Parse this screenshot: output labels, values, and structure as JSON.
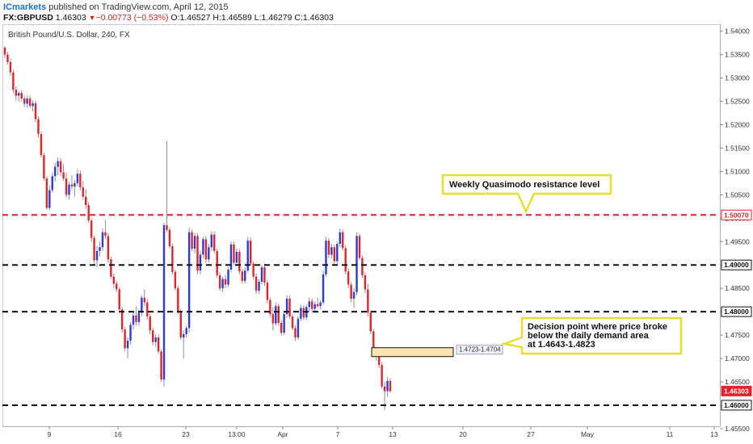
{
  "header": {
    "author": "ICmarkets",
    "published": "published on TradingView.com, April 12, 2015",
    "symbol": "FX:GBPUSD",
    "last": "1.46303",
    "change": "−0.00773 (−0.53%)",
    "open": "O:1.46527",
    "high": "H:1.46589",
    "low": "L:1.46279",
    "close": "C:1.46303"
  },
  "colors": {
    "up": "#2b3bd6",
    "down": "#e0242b",
    "level_black": "#111111",
    "level_red": "#d8252b",
    "callout_border": "#e3e033",
    "zone_fill": "#fbe3b0"
  },
  "chart_data": {
    "type": "candlestick",
    "title": "British Pound/U.S. Dollar, 240, FX",
    "ylim": [
      1.4555,
      1.5415
    ],
    "y_ticks": [
      "1.54000",
      "1.53500",
      "1.53000",
      "1.52500",
      "1.52000",
      "1.51500",
      "1.51000",
      "1.50500",
      "1.50000",
      "1.49500",
      "1.49000",
      "1.48500",
      "1.48000",
      "1.47500",
      "1.47000",
      "1.46500",
      "1.46000",
      "1.45500"
    ],
    "x_ticks": [
      "9",
      "16",
      "23",
      "13:00",
      "Apr",
      "7",
      "13",
      "20",
      "27",
      "May",
      "11",
      "13"
    ],
    "levels": [
      {
        "price": 1.5007,
        "label": "1.50070",
        "style": "red"
      },
      {
        "price": 1.49,
        "label": "1.49000",
        "style": "black"
      },
      {
        "price": 1.48,
        "label": "1.48000",
        "style": "black"
      },
      {
        "price": 1.46,
        "label": "1.46000",
        "style": "black"
      }
    ],
    "last_price": {
      "price": 1.46303,
      "label": "1.46303"
    },
    "zone": {
      "top": 1.4723,
      "bottom": 1.4704,
      "label": "1.4723-1.4704"
    },
    "callouts": [
      {
        "id": "weekly",
        "lines": [
          "Weekly Quasimodo resistance level"
        ]
      },
      {
        "id": "decision",
        "lines": [
          "Decision point where price broke",
          "below the daily demand area",
          "at 1.4643-1.4823"
        ]
      }
    ],
    "candles": [
      [
        1.5365,
        1.5368,
        1.5342,
        1.535
      ],
      [
        1.535,
        1.5356,
        1.5328,
        1.5334
      ],
      [
        1.5334,
        1.534,
        1.5305,
        1.5312
      ],
      [
        1.5312,
        1.5318,
        1.5268,
        1.5275
      ],
      [
        1.5275,
        1.5282,
        1.5252,
        1.5262
      ],
      [
        1.5262,
        1.5272,
        1.525,
        1.5268
      ],
      [
        1.5268,
        1.5274,
        1.525,
        1.5256
      ],
      [
        1.5256,
        1.5262,
        1.5238,
        1.5245
      ],
      [
        1.5245,
        1.5262,
        1.5236,
        1.5256
      ],
      [
        1.5256,
        1.5262,
        1.5236,
        1.524
      ],
      [
        1.524,
        1.5252,
        1.5228,
        1.5246
      ],
      [
        1.5246,
        1.5252,
        1.5206,
        1.5212
      ],
      [
        1.5212,
        1.5218,
        1.5172,
        1.518
      ],
      [
        1.518,
        1.5186,
        1.513,
        1.5135
      ],
      [
        1.5135,
        1.514,
        1.508,
        1.5085
      ],
      [
        1.5085,
        1.509,
        1.5018,
        1.5022
      ],
      [
        1.5022,
        1.507,
        1.5018,
        1.506
      ],
      [
        1.506,
        1.5098,
        1.5055,
        1.509
      ],
      [
        1.509,
        1.5118,
        1.5078,
        1.511
      ],
      [
        1.511,
        1.513,
        1.5092,
        1.5122
      ],
      [
        1.5122,
        1.5128,
        1.509,
        1.5098
      ],
      [
        1.5098,
        1.5116,
        1.508,
        1.5085
      ],
      [
        1.5085,
        1.5098,
        1.5044,
        1.505
      ],
      [
        1.505,
        1.5078,
        1.504,
        1.5072
      ],
      [
        1.5072,
        1.5092,
        1.506,
        1.5068
      ],
      [
        1.5068,
        1.5082,
        1.5046,
        1.5075
      ],
      [
        1.5075,
        1.5105,
        1.5068,
        1.5095
      ],
      [
        1.5095,
        1.5102,
        1.506,
        1.5066
      ],
      [
        1.5066,
        1.508,
        1.504,
        1.5046
      ],
      [
        1.5046,
        1.5062,
        1.502,
        1.5028
      ],
      [
        1.5028,
        1.5034,
        1.499,
        1.4995
      ],
      [
        1.4995,
        1.5,
        1.495,
        1.4958
      ],
      [
        1.4958,
        1.4963,
        1.4902,
        1.491
      ],
      [
        1.491,
        1.494,
        1.4895,
        1.493
      ],
      [
        1.493,
        1.495,
        1.4918,
        1.4938
      ],
      [
        1.4938,
        1.4978,
        1.493,
        1.497
      ],
      [
        1.497,
        1.4996,
        1.4955,
        1.4962
      ],
      [
        1.4962,
        1.4968,
        1.4905,
        1.4912
      ],
      [
        1.4912,
        1.4918,
        1.487,
        1.4875
      ],
      [
        1.4875,
        1.4882,
        1.485,
        1.486
      ],
      [
        1.486,
        1.4866,
        1.4842,
        1.4848
      ],
      [
        1.4848,
        1.4853,
        1.48,
        1.4805
      ],
      [
        1.4805,
        1.481,
        1.4755,
        1.4762
      ],
      [
        1.4762,
        1.4768,
        1.4715,
        1.4722
      ],
      [
        1.4722,
        1.4745,
        1.47,
        1.4738
      ],
      [
        1.4738,
        1.4778,
        1.473,
        1.4772
      ],
      [
        1.4772,
        1.48,
        1.4762,
        1.4792
      ],
      [
        1.4792,
        1.4812,
        1.477,
        1.4778
      ],
      [
        1.4778,
        1.4805,
        1.477,
        1.4798
      ],
      [
        1.4798,
        1.4835,
        1.479,
        1.483
      ],
      [
        1.483,
        1.4848,
        1.4812,
        1.482
      ],
      [
        1.482,
        1.4826,
        1.4782,
        1.479
      ],
      [
        1.479,
        1.4796,
        1.4752,
        1.476
      ],
      [
        1.476,
        1.4766,
        1.4728,
        1.4735
      ],
      [
        1.4735,
        1.4752,
        1.4725,
        1.4745
      ],
      [
        1.4745,
        1.4752,
        1.471,
        1.4715
      ],
      [
        1.4715,
        1.472,
        1.465,
        1.4655
      ],
      [
        1.4655,
        1.499,
        1.464,
        1.4985
      ],
      [
        1.4985,
        1.5165,
        1.497,
        1.4975
      ],
      [
        1.4975,
        1.4981,
        1.4935,
        1.494
      ],
      [
        1.494,
        1.4946,
        1.488,
        1.4885
      ],
      [
        1.4885,
        1.489,
        1.4845,
        1.485
      ],
      [
        1.485,
        1.4856,
        1.4795,
        1.48
      ],
      [
        1.48,
        1.4806,
        1.474,
        1.4745
      ],
      [
        1.4745,
        1.476,
        1.47,
        1.4752
      ],
      [
        1.4752,
        1.477,
        1.4745,
        1.4765
      ],
      [
        1.4765,
        1.498,
        1.4755,
        1.497
      ],
      [
        1.497,
        1.4976,
        1.493,
        1.4935
      ],
      [
        1.4935,
        1.4968,
        1.4925,
        1.4962
      ],
      [
        1.4962,
        1.4968,
        1.488,
        1.4888
      ],
      [
        1.4888,
        1.493,
        1.488,
        1.4922
      ],
      [
        1.4922,
        1.496,
        1.4915,
        1.4955
      ],
      [
        1.4955,
        1.4962,
        1.4905,
        1.4912
      ],
      [
        1.4912,
        1.4945,
        1.4905,
        1.4938
      ],
      [
        1.4938,
        1.4972,
        1.493,
        1.4965
      ],
      [
        1.4965,
        1.4972,
        1.4925,
        1.493
      ],
      [
        1.493,
        1.4935,
        1.4872,
        1.4878
      ],
      [
        1.4878,
        1.4884,
        1.4845,
        1.485
      ],
      [
        1.485,
        1.4875,
        1.4842,
        1.487
      ],
      [
        1.487,
        1.4878,
        1.485,
        1.4858
      ],
      [
        1.4858,
        1.4895,
        1.4852,
        1.489
      ],
      [
        1.489,
        1.495,
        1.4884,
        1.4944
      ],
      [
        1.4944,
        1.495,
        1.49,
        1.4905
      ],
      [
        1.4905,
        1.4935,
        1.4898,
        1.4928
      ],
      [
        1.4928,
        1.4934,
        1.488,
        1.4886
      ],
      [
        1.4886,
        1.4892,
        1.486,
        1.4866
      ],
      [
        1.4866,
        1.4895,
        1.486,
        1.4888
      ],
      [
        1.4888,
        1.496,
        1.4884,
        1.4952
      ],
      [
        1.4952,
        1.4958,
        1.4898,
        1.4903
      ],
      [
        1.4903,
        1.4908,
        1.487,
        1.4875
      ],
      [
        1.4875,
        1.4882,
        1.4838,
        1.4845
      ],
      [
        1.4845,
        1.487,
        1.4838,
        1.4864
      ],
      [
        1.4864,
        1.49,
        1.4858,
        1.4895
      ],
      [
        1.4895,
        1.4902,
        1.4855,
        1.4862
      ],
      [
        1.4862,
        1.4868,
        1.4818,
        1.4825
      ],
      [
        1.4825,
        1.483,
        1.4788,
        1.4795
      ],
      [
        1.4795,
        1.481,
        1.476,
        1.4775
      ],
      [
        1.4775,
        1.482,
        1.477,
        1.4812
      ],
      [
        1.4812,
        1.4818,
        1.477,
        1.4776
      ],
      [
        1.4776,
        1.4782,
        1.4748,
        1.4755
      ],
      [
        1.4755,
        1.48,
        1.475,
        1.4795
      ],
      [
        1.4795,
        1.4835,
        1.4788,
        1.4828
      ],
      [
        1.4828,
        1.4834,
        1.4785,
        1.479
      ],
      [
        1.479,
        1.4795,
        1.476,
        1.4765
      ],
      [
        1.4765,
        1.4771,
        1.4738,
        1.4745
      ],
      [
        1.4745,
        1.479,
        1.474,
        1.4785
      ],
      [
        1.4785,
        1.4815,
        1.478,
        1.4808
      ],
      [
        1.4808,
        1.4814,
        1.4782,
        1.4788
      ],
      [
        1.4788,
        1.4815,
        1.4782,
        1.481
      ],
      [
        1.481,
        1.483,
        1.48,
        1.4822
      ],
      [
        1.4822,
        1.4828,
        1.48,
        1.4806
      ],
      [
        1.4806,
        1.4822,
        1.4798,
        1.4816
      ],
      [
        1.4816,
        1.483,
        1.4808,
        1.4812
      ],
      [
        1.4812,
        1.4825,
        1.4805,
        1.482
      ],
      [
        1.482,
        1.4888,
        1.4815,
        1.488
      ],
      [
        1.488,
        1.496,
        1.4875,
        1.4952
      ],
      [
        1.4952,
        1.4958,
        1.4915,
        1.4922
      ],
      [
        1.4922,
        1.4945,
        1.4915,
        1.4938
      ],
      [
        1.4938,
        1.4944,
        1.49,
        1.4908
      ],
      [
        1.4908,
        1.495,
        1.49,
        1.4945
      ],
      [
        1.4945,
        1.4978,
        1.4938,
        1.497
      ],
      [
        1.497,
        1.4976,
        1.493,
        1.4936
      ],
      [
        1.4936,
        1.4942,
        1.488,
        1.4886
      ],
      [
        1.4886,
        1.4893,
        1.485,
        1.4858
      ],
      [
        1.4858,
        1.4864,
        1.482,
        1.4828
      ],
      [
        1.4828,
        1.485,
        1.4808,
        1.4842
      ],
      [
        1.4842,
        1.497,
        1.4835,
        1.4962
      ],
      [
        1.4962,
        1.4968,
        1.491,
        1.4915
      ],
      [
        1.4915,
        1.4921,
        1.4872,
        1.4878
      ],
      [
        1.4878,
        1.4884,
        1.484,
        1.4848
      ],
      [
        1.4848,
        1.486,
        1.479,
        1.4798
      ],
      [
        1.4798,
        1.4803,
        1.4752,
        1.4758
      ],
      [
        1.4758,
        1.4764,
        1.4705,
        1.4712
      ],
      [
        1.4712,
        1.4725,
        1.4695,
        1.4718
      ],
      [
        1.4718,
        1.4722,
        1.468,
        1.4686
      ],
      [
        1.4686,
        1.4692,
        1.4635,
        1.464
      ],
      [
        1.464,
        1.465,
        1.459,
        1.463
      ],
      [
        1.463,
        1.466,
        1.4618,
        1.4652
      ],
      [
        1.4652,
        1.4658,
        1.4627,
        1.463
      ]
    ]
  }
}
